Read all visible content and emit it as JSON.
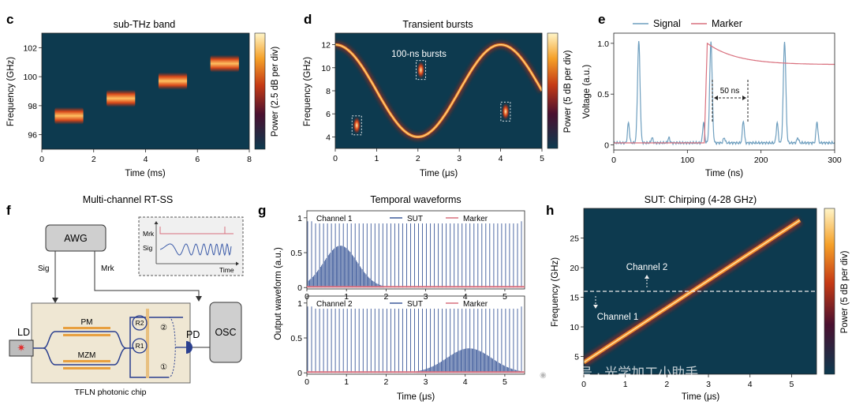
{
  "panels": {
    "c": {
      "letter": "c",
      "title": "sub-THz band",
      "xlabel": "Time (ms)",
      "ylabel": "Frequency (GHz)",
      "cbar_label": "Power (2.5 dB per div)"
    },
    "d": {
      "letter": "d",
      "title": "Transient bursts",
      "xlabel": "Time (μs)",
      "ylabel": "Frequency (GHz)",
      "cbar_label": "Power (5 dB per div)",
      "annotation": "100-ns bursts"
    },
    "e": {
      "letter": "e",
      "xlabel": "Time (ns)",
      "ylabel": "Voltage (a.u.)",
      "legend": [
        "Signal",
        "Marker"
      ],
      "annotation": "50 ns"
    },
    "f": {
      "letter": "f",
      "title": "Multi-channel RT-SS",
      "awg": "AWG",
      "osc": "OSC",
      "ld": "LD",
      "pd": "PD",
      "sig": "Sig",
      "mrk": "Mrk",
      "pm": "PM",
      "mzm": "MZM",
      "r1": "R1",
      "r2": "R2",
      "port1": "①",
      "port2": "②",
      "chip": "TFLN photonic chip",
      "inset_mrk": "Mrk",
      "inset_sig": "Sig",
      "inset_time": "Time"
    },
    "g": {
      "letter": "g",
      "title": "Temporal waveforms",
      "xlabel": "Time (μs)",
      "ylabel": "Output waveform (a.u.)",
      "ch1": "Channel 1",
      "ch2": "Channel 2",
      "legend": [
        "SUT",
        "Marker"
      ]
    },
    "h": {
      "letter": "h",
      "title": "SUT: Chirping (4-28 GHz)",
      "xlabel": "Time (μs)",
      "ylabel": "Frequency (GHz)",
      "cbar_label": "Power (5 dB per div)",
      "ch1": "Channel 1",
      "ch2": "Channel 2"
    }
  },
  "watermark": "公众号 · 光学加工小助手",
  "chart_data": [
    {
      "id": "c",
      "type": "heatmap",
      "title": "sub-THz band",
      "xlabel": "Time (ms)",
      "ylabel": "Frequency (GHz)",
      "xlim": [
        0,
        8
      ],
      "ylim": [
        95,
        103
      ],
      "xticks": [
        0,
        2,
        4,
        6,
        8
      ],
      "yticks": [
        96,
        98,
        100,
        102
      ],
      "steps": [
        {
          "t0": 0.5,
          "t1": 1.6,
          "f": 97.3
        },
        {
          "t0": 2.5,
          "t1": 3.6,
          "f": 98.5
        },
        {
          "t0": 4.5,
          "t1": 5.6,
          "f": 99.7
        },
        {
          "t0": 6.5,
          "t1": 7.6,
          "f": 100.9
        }
      ],
      "colorbar": "Power (2.5 dB per div)"
    },
    {
      "id": "d",
      "type": "heatmap",
      "title": "Transient bursts",
      "xlabel": "Time (μs)",
      "ylabel": "Frequency (GHz)",
      "xlim": [
        0,
        5
      ],
      "ylim": [
        3,
        13
      ],
      "xticks": [
        0,
        1,
        2,
        3,
        4,
        5
      ],
      "yticks": [
        4,
        6,
        8,
        10,
        12
      ],
      "sweep": {
        "center": 8,
        "amplitude": 4,
        "period": 4,
        "peak_time": 0
      },
      "bursts": [
        {
          "t": 0.52,
          "f": 5.0
        },
        {
          "t": 2.07,
          "f": 9.8
        },
        {
          "t": 4.12,
          "f": 6.2
        }
      ],
      "annotation": "100-ns bursts",
      "colorbar": "Power (5 dB per div)"
    },
    {
      "id": "e",
      "type": "line",
      "xlabel": "Time (ns)",
      "ylabel": "Voltage (a.u.)",
      "xlim": [
        0,
        300
      ],
      "ylim": [
        -0.05,
        1.1
      ],
      "xticks": [
        0,
        100,
        200,
        300
      ],
      "yticks": [
        0,
        0.5,
        1.0
      ],
      "series": [
        {
          "name": "Signal",
          "color": "#6f9fbf",
          "baseline": 0.02,
          "peaks": [
            [
              20,
              0.2
            ],
            [
              34,
              1.0
            ],
            [
              52,
              0.05
            ],
            [
              75,
              0.05
            ],
            [
              122,
              0.2
            ],
            [
              132,
              1.0
            ],
            [
              150,
              0.05
            ],
            [
              176,
              0.22
            ],
            [
              222,
              0.2
            ],
            [
              232,
              1.0
            ],
            [
              250,
              0.05
            ],
            [
              276,
              0.21
            ]
          ]
        },
        {
          "name": "Marker",
          "color": "#d9707e",
          "rise_time": 127,
          "peak": 1.0,
          "decay_end": 0.79
        }
      ],
      "annotation": "50 ns"
    },
    {
      "id": "g",
      "type": "line",
      "title": "Temporal waveforms",
      "xlabel": "Time (μs)",
      "ylabel": "Output waveform (a.u.)",
      "xlim": [
        0,
        5.5
      ],
      "ylim": [
        -0.02,
        1.1
      ],
      "xticks": [
        0,
        1,
        2,
        3,
        4,
        5
      ],
      "yticks": [
        0,
        0.5,
        1
      ],
      "subplots": [
        {
          "name": "Channel 1",
          "pulse_period_us": 0.1,
          "pulse_height": 0.95,
          "envelope": {
            "center": 0.85,
            "width": 0.6,
            "height": 0.6
          }
        },
        {
          "name": "Channel 2",
          "pulse_period_us": 0.1,
          "pulse_height": 0.95,
          "envelope": {
            "center": 4.1,
            "width": 0.8,
            "height": 0.35
          }
        }
      ],
      "legend": [
        "SUT",
        "Marker"
      ]
    },
    {
      "id": "h",
      "type": "heatmap",
      "title": "SUT: Chirping (4-28 GHz)",
      "xlabel": "Time (μs)",
      "ylabel": "Frequency (GHz)",
      "xlim": [
        0,
        5.6
      ],
      "ylim": [
        2,
        30
      ],
      "xticks": [
        0,
        1,
        2,
        3,
        4,
        5
      ],
      "yticks": [
        5,
        10,
        15,
        20,
        25
      ],
      "chirp": {
        "t0": 0,
        "f0": 4,
        "t1": 5.2,
        "f1": 28
      },
      "channel_boundary_ghz": 16,
      "colorbar": "Power (5 dB per div)"
    }
  ]
}
